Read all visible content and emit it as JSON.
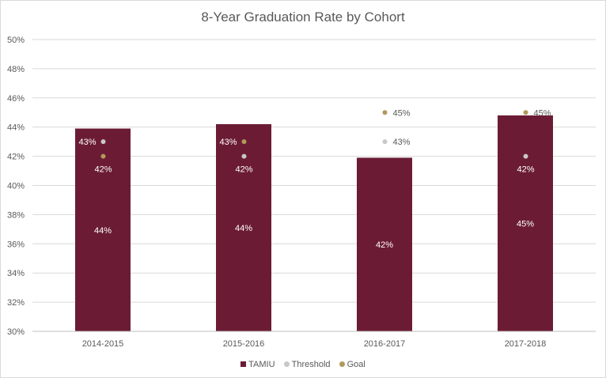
{
  "chart_data": {
    "type": "bar",
    "title": "8-Year Graduation Rate by Cohort",
    "categories": [
      "2014-2015",
      "2015-2016",
      "2016-2017",
      "2017-2018"
    ],
    "series": [
      {
        "name": "TAMIU",
        "kind": "bar",
        "color": "#6b1c34",
        "values": [
          43.9,
          44.2,
          41.9,
          44.8
        ],
        "labels": [
          "44%",
          "44%",
          "42%",
          "45%"
        ]
      },
      {
        "name": "Threshold",
        "kind": "marker",
        "color": "#c8c8c8",
        "values": [
          43.0,
          42.0,
          43.0,
          42.0
        ],
        "labels": [
          "43%",
          "42%",
          "43%",
          "42%"
        ]
      },
      {
        "name": "Goal",
        "kind": "marker",
        "color": "#b09a5b",
        "values": [
          42.0,
          43.0,
          45.0,
          45.0
        ],
        "labels": [
          "42%",
          "43%",
          "45%",
          "45%"
        ]
      }
    ],
    "ylim": [
      30,
      50
    ],
    "yticks": [
      "30%",
      "32%",
      "34%",
      "36%",
      "38%",
      "40%",
      "42%",
      "44%",
      "46%",
      "48%",
      "50%"
    ],
    "ytick_values": [
      30,
      32,
      34,
      36,
      38,
      40,
      42,
      44,
      46,
      48,
      50
    ],
    "grid": true,
    "legend_position": "bottom"
  },
  "legend": {
    "tamiu": "TAMIU",
    "threshold": "Threshold",
    "goal": "Goal"
  }
}
